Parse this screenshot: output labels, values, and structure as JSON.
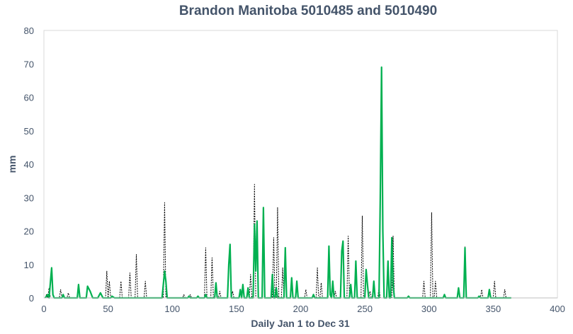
{
  "chart_data": {
    "type": "line",
    "title": "Brandon Manitoba 5010485 and 5010490",
    "xlabel": "Daily Jan 1 to Dec 31",
    "ylabel": "mm",
    "xlim": [
      0,
      400
    ],
    "ylim": [
      0,
      80
    ],
    "x_ticks": [
      0,
      50,
      100,
      150,
      200,
      250,
      300,
      350,
      400
    ],
    "y_ticks": [
      0,
      10,
      20,
      30,
      40,
      50,
      60,
      70,
      80
    ],
    "grid": false,
    "legend": "none",
    "series": [
      {
        "style": "solid",
        "color": "#00b050",
        "points": [
          [
            1,
            0
          ],
          [
            3,
            1
          ],
          [
            4,
            0
          ],
          [
            6,
            9
          ],
          [
            7,
            1
          ],
          [
            8,
            0
          ],
          [
            14,
            0
          ],
          [
            15,
            1
          ],
          [
            16,
            0
          ],
          [
            26,
            0
          ],
          [
            27,
            4
          ],
          [
            28,
            0
          ],
          [
            33,
            0
          ],
          [
            34,
            3.5
          ],
          [
            36,
            2
          ],
          [
            38,
            0
          ],
          [
            42,
            0
          ],
          [
            44,
            1.5
          ],
          [
            46,
            0
          ],
          [
            52,
            0
          ],
          [
            53,
            0.5
          ],
          [
            55,
            0
          ],
          [
            92,
            0
          ],
          [
            94,
            8
          ],
          [
            95,
            5
          ],
          [
            96,
            0
          ],
          [
            112,
            0
          ],
          [
            113,
            0.5
          ],
          [
            114,
            0
          ],
          [
            119,
            0
          ],
          [
            120,
            0.5
          ],
          [
            121,
            0
          ],
          [
            125,
            0
          ],
          [
            126,
            1
          ],
          [
            127,
            0
          ],
          [
            133,
            0
          ],
          [
            134,
            4.5
          ],
          [
            135,
            0
          ],
          [
            143,
            0
          ],
          [
            144,
            10
          ],
          [
            145,
            16
          ],
          [
            146,
            0
          ],
          [
            152,
            0
          ],
          [
            153,
            2.5
          ],
          [
            154,
            0
          ],
          [
            155,
            4
          ],
          [
            156,
            0
          ],
          [
            158,
            0
          ],
          [
            159,
            3
          ],
          [
            160,
            0
          ],
          [
            163,
            0
          ],
          [
            164,
            22
          ],
          [
            165,
            8
          ],
          [
            166,
            23
          ],
          [
            167,
            0
          ],
          [
            170,
            0
          ],
          [
            171,
            27
          ],
          [
            172,
            0
          ],
          [
            177,
            0
          ],
          [
            178,
            7
          ],
          [
            179,
            0
          ],
          [
            180,
            0
          ],
          [
            181,
            3
          ],
          [
            182,
            0
          ],
          [
            187,
            0
          ],
          [
            188,
            15
          ],
          [
            189,
            0
          ],
          [
            192,
            0
          ],
          [
            193,
            6
          ],
          [
            194,
            0
          ],
          [
            196,
            0
          ],
          [
            197,
            5
          ],
          [
            198,
            0
          ],
          [
            209,
            0
          ],
          [
            210,
            1
          ],
          [
            211,
            0
          ],
          [
            221,
            0
          ],
          [
            222,
            15.5
          ],
          [
            223,
            1
          ],
          [
            224,
            0
          ],
          [
            225,
            5
          ],
          [
            226,
            0
          ],
          [
            231,
            0
          ],
          [
            232,
            14
          ],
          [
            233,
            17
          ],
          [
            234,
            0
          ],
          [
            238,
            0
          ],
          [
            239,
            4
          ],
          [
            240,
            0
          ],
          [
            242,
            0
          ],
          [
            243,
            11
          ],
          [
            244,
            0
          ],
          [
            250,
            0
          ],
          [
            251,
            8.5
          ],
          [
            252,
            4
          ],
          [
            253,
            0
          ],
          [
            256,
            0
          ],
          [
            257,
            5
          ],
          [
            258,
            0
          ],
          [
            261,
            0
          ],
          [
            262,
            30
          ],
          [
            263,
            69
          ],
          [
            264,
            20
          ],
          [
            265,
            0
          ],
          [
            267,
            0
          ],
          [
            268,
            11
          ],
          [
            269,
            0
          ],
          [
            270,
            0
          ],
          [
            271,
            18
          ],
          [
            272,
            4
          ],
          [
            273,
            0
          ],
          [
            283,
            0
          ],
          [
            284,
            0.5
          ],
          [
            285,
            0
          ],
          [
            311,
            0
          ],
          [
            312,
            1
          ],
          [
            313,
            0
          ],
          [
            322,
            0
          ],
          [
            323,
            3
          ],
          [
            324,
            0
          ],
          [
            327,
            0
          ],
          [
            328,
            15
          ],
          [
            329,
            0
          ],
          [
            338,
            0
          ],
          [
            339,
            0.5
          ],
          [
            340,
            0
          ],
          [
            346,
            0
          ],
          [
            347,
            2.5
          ],
          [
            348,
            0
          ],
          [
            364,
            0
          ]
        ]
      },
      {
        "style": "dotted",
        "color": "#000000",
        "points": [
          [
            1,
            0
          ],
          [
            2,
            1
          ],
          [
            3,
            0
          ],
          [
            4,
            3
          ],
          [
            5,
            0
          ],
          [
            12,
            0
          ],
          [
            13,
            2.5
          ],
          [
            14,
            0
          ],
          [
            18,
            0
          ],
          [
            19,
            1.5
          ],
          [
            20,
            0
          ],
          [
            48,
            0
          ],
          [
            49,
            8
          ],
          [
            50,
            0
          ],
          [
            51,
            5
          ],
          [
            52,
            0
          ],
          [
            59,
            0
          ],
          [
            60,
            5
          ],
          [
            61,
            0
          ],
          [
            66,
            0
          ],
          [
            67,
            7.5
          ],
          [
            68,
            0
          ],
          [
            71,
            0
          ],
          [
            72,
            13
          ],
          [
            73,
            0
          ],
          [
            78,
            0
          ],
          [
            79,
            5
          ],
          [
            80,
            0
          ],
          [
            93,
            0
          ],
          [
            94,
            28.5
          ],
          [
            95,
            0
          ],
          [
            108,
            0
          ],
          [
            109,
            1
          ],
          [
            110,
            0
          ],
          [
            113,
            0
          ],
          [
            114,
            1
          ],
          [
            115,
            0
          ],
          [
            125,
            0
          ],
          [
            126,
            15
          ],
          [
            127,
            0
          ],
          [
            130,
            0
          ],
          [
            131,
            12
          ],
          [
            132,
            0
          ],
          [
            136,
            0
          ],
          [
            137,
            2
          ],
          [
            138,
            0
          ],
          [
            146,
            0
          ],
          [
            147,
            2
          ],
          [
            148,
            0
          ],
          [
            160,
            0
          ],
          [
            161,
            7
          ],
          [
            162,
            0
          ],
          [
            163,
            0
          ],
          [
            164,
            34
          ],
          [
            165,
            0
          ],
          [
            178,
            0
          ],
          [
            179,
            18
          ],
          [
            180,
            0
          ],
          [
            181,
            0
          ],
          [
            182,
            27
          ],
          [
            183,
            0
          ],
          [
            185,
            0
          ],
          [
            186,
            9
          ],
          [
            187,
            0
          ],
          [
            203,
            0
          ],
          [
            204,
            2.5
          ],
          [
            205,
            0
          ],
          [
            212,
            0
          ],
          [
            213,
            9
          ],
          [
            214,
            0
          ],
          [
            215,
            0
          ],
          [
            216,
            4.5
          ],
          [
            217,
            0
          ],
          [
            226,
            0
          ],
          [
            227,
            2
          ],
          [
            228,
            0
          ],
          [
            236,
            0
          ],
          [
            237,
            18.5
          ],
          [
            238,
            0
          ],
          [
            247,
            0
          ],
          [
            248,
            24.5
          ],
          [
            249,
            0
          ],
          [
            253,
            0
          ],
          [
            254,
            2
          ],
          [
            255,
            0
          ],
          [
            260,
            0
          ],
          [
            261,
            3
          ],
          [
            262,
            0
          ],
          [
            271,
            0
          ],
          [
            272,
            18.5
          ],
          [
            273,
            0
          ],
          [
            295,
            0
          ],
          [
            296,
            5
          ],
          [
            297,
            0
          ],
          [
            301,
            0
          ],
          [
            302,
            25.5
          ],
          [
            303,
            0
          ],
          [
            304,
            0
          ],
          [
            305,
            5
          ],
          [
            306,
            0
          ],
          [
            327,
            0
          ],
          [
            328,
            15.5
          ],
          [
            329,
            0
          ],
          [
            340,
            0
          ],
          [
            341,
            2.5
          ],
          [
            342,
            0
          ],
          [
            350,
            0
          ],
          [
            351,
            5
          ],
          [
            352,
            0
          ],
          [
            358,
            0
          ],
          [
            359,
            2.5
          ],
          [
            360,
            0
          ]
        ]
      }
    ]
  }
}
